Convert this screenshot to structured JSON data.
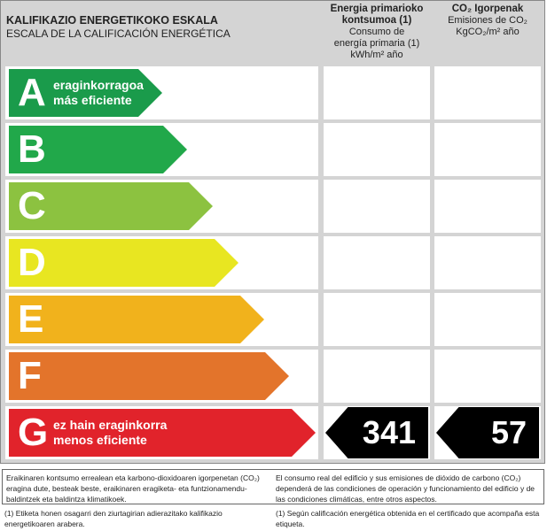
{
  "header": {
    "title_eu": "KALIFIKAZIO ENERGETIKOKO ESKALA",
    "title_es": "ESCALA DE LA CALIFICACIÓN ENERGÉTICA",
    "col1": {
      "l1": "Energia primarioko",
      "l2": "kontsumoa (1)",
      "l3": "Consumo de",
      "l4": "energía primaria (1)",
      "l5": "kWh/m² año"
    },
    "col2": {
      "l1": "CO₂ Igorpenak",
      "l2": "Emisiones de CO₂",
      "l3": "KgCO₂/m² año"
    }
  },
  "ratings": [
    {
      "letter": "A",
      "eu": "eraginkorragoa",
      "es": "más eficiente",
      "color": "#1a9b4b"
    },
    {
      "letter": "B",
      "eu": "",
      "es": "",
      "color": "#21a84a"
    },
    {
      "letter": "C",
      "eu": "",
      "es": "",
      "color": "#8cc240"
    },
    {
      "letter": "D",
      "eu": "",
      "es": "",
      "color": "#e8e621"
    },
    {
      "letter": "E",
      "eu": "",
      "es": "",
      "color": "#f1b21c"
    },
    {
      "letter": "F",
      "eu": "",
      "es": "",
      "color": "#e3742b"
    },
    {
      "letter": "G",
      "eu": "ez hain eraginkorra",
      "es": "menos eficiente",
      "color": "#e1232b"
    }
  ],
  "current": {
    "rating": "G",
    "consumption": "341",
    "emissions": "57"
  },
  "footer": {
    "box_eu": "Eraikinaren kontsumo errealean eta karbono-dioxidoaren igorpenetan (CO₂) eragina dute, besteak beste, eraikinaren eragiketa- eta funtzionamendu-baldintzek eta baldintza klimatikoek.",
    "box_es": "El consumo real del edificio y sus emisiones de dióxido de carbono (CO₂) dependerá de las condiciones de operación y funcionamiento del edificio y de las condiciones climáticas, entre otros aspectos.",
    "note_eu": "(1) Etiketa honen osagarri den ziurtagirian adierazitako kalifikazio energetikoaren arabera.",
    "note_es": "(1) Según calificación energética obtenida en el certificado que acompaña esta etiqueta."
  }
}
